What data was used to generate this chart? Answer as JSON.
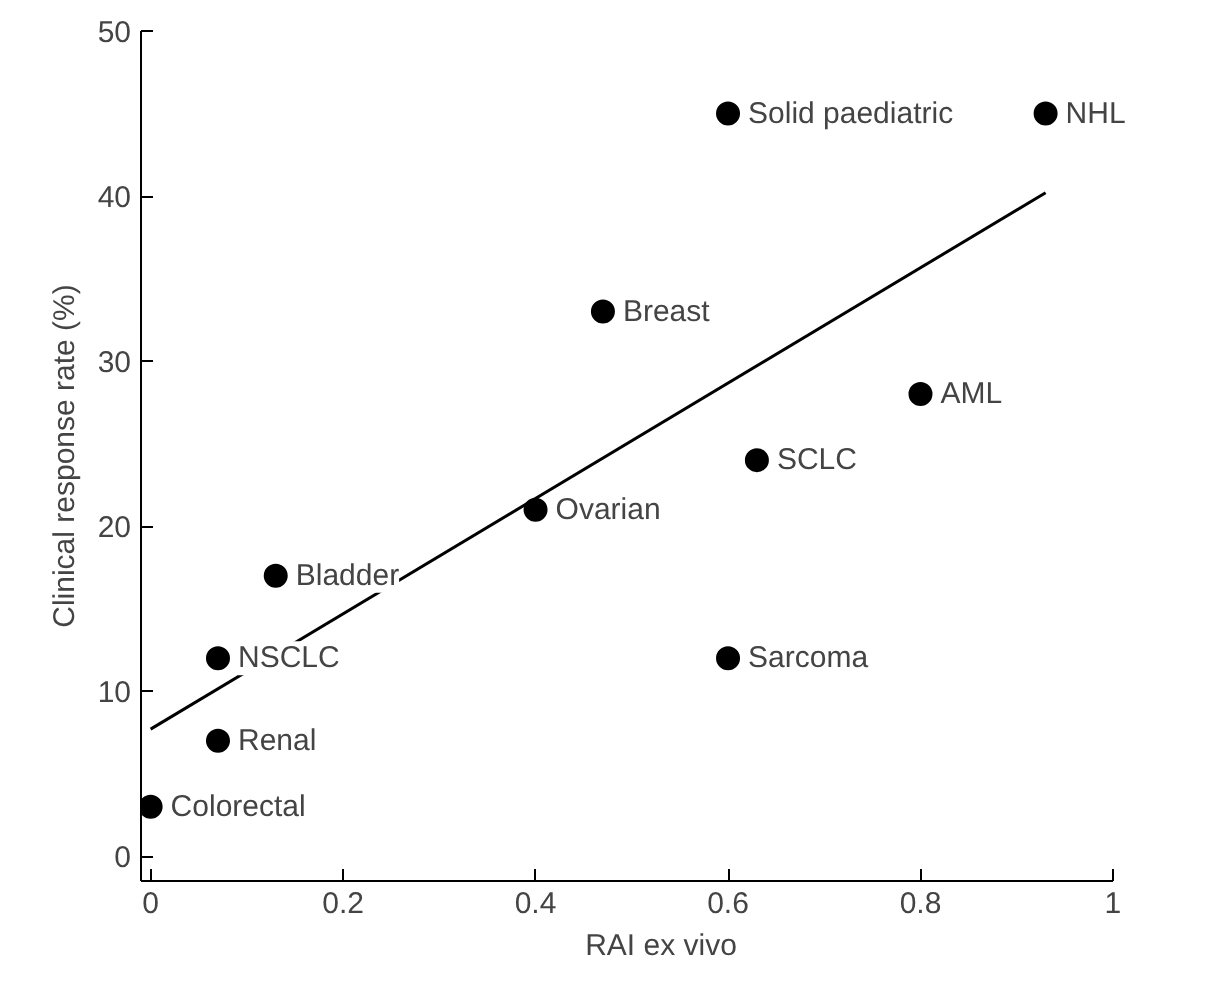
{
  "chart_data": {
    "type": "scatter",
    "xlabel": "RAI ex vivo",
    "ylabel": "Clinical response rate (%)",
    "xlim": [
      -0.01,
      1
    ],
    "ylim": [
      -1.5,
      50
    ],
    "xticks": [
      0,
      0.2,
      0.4,
      0.6,
      0.8,
      1
    ],
    "yticks": [
      0,
      10,
      20,
      30,
      40,
      50
    ],
    "grid": false,
    "marker": "circle",
    "series": [
      {
        "type": "scatter",
        "color": "#000000",
        "x": [
          0,
          0.07,
          0.07,
          0.13,
          0.4,
          0.47,
          0.63,
          0.6,
          0.8,
          0.6,
          0.93
        ],
        "values": [
          3,
          12,
          7,
          17,
          21,
          33,
          24,
          12,
          28,
          45,
          45
        ]
      },
      {
        "type": "line",
        "color": "#000000",
        "marker": "none",
        "line_style": "solid",
        "x": [
          0,
          0.93
        ],
        "values": [
          7.7,
          40.2
        ]
      }
    ],
    "annotations": [
      {
        "text": "Colorectal",
        "x": 0,
        "y": 3
      },
      {
        "text": "NSCLC",
        "x": 0.07,
        "y": 12
      },
      {
        "text": "Renal",
        "x": 0.07,
        "y": 7
      },
      {
        "text": "Bladder",
        "x": 0.13,
        "y": 17
      },
      {
        "text": "Ovarian",
        "x": 0.4,
        "y": 21
      },
      {
        "text": "Breast",
        "x": 0.47,
        "y": 33
      },
      {
        "text": "SCLC",
        "x": 0.63,
        "y": 24
      },
      {
        "text": "Sarcoma",
        "x": 0.6,
        "y": 12
      },
      {
        "text": "AML",
        "x": 0.8,
        "y": 28
      },
      {
        "text": "Solid paediatric",
        "x": 0.6,
        "y": 45
      },
      {
        "text": "NHL",
        "x": 0.93,
        "y": 45
      }
    ]
  }
}
